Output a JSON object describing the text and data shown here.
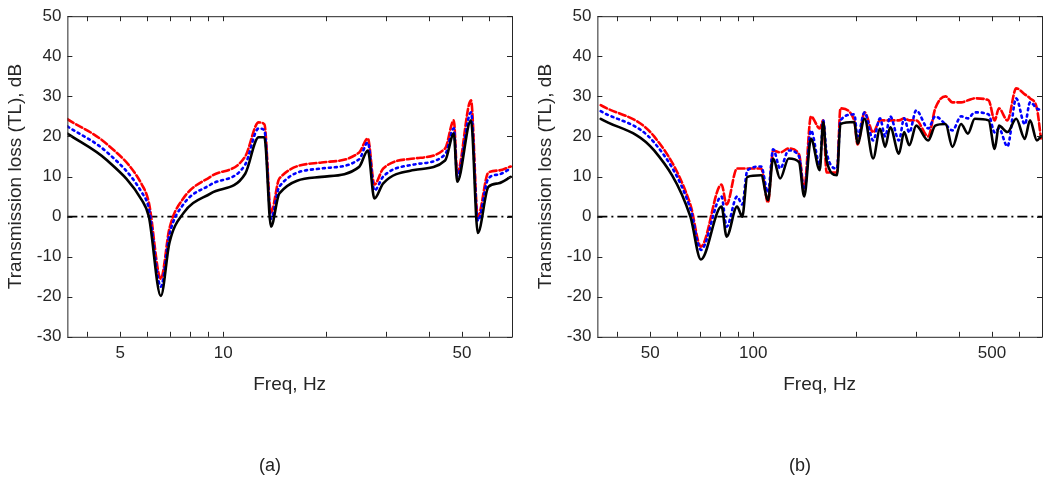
{
  "chart_data": [
    {
      "type": "line",
      "xlabel": "Freq, Hz",
      "ylabel": "Transmission loss (TL), dB",
      "log": "x",
      "grid": false,
      "legend": false,
      "marker": "none",
      "annotations": [
        "(a)"
      ],
      "xlim": [
        3.5,
        70
      ],
      "xticks": [
        {
          "value": 4,
          "label": null
        },
        5,
        {
          "value": 6,
          "label": null
        },
        {
          "value": 7,
          "label": null
        },
        {
          "value": 8,
          "label": null
        },
        {
          "value": 9,
          "label": null
        },
        10,
        {
          "value": 20,
          "label": null
        },
        {
          "value": 30,
          "label": null
        },
        {
          "value": 40,
          "label": null
        },
        50,
        {
          "value": 60,
          "label": null
        },
        {
          "value": 70,
          "label": null
        }
      ],
      "ylim": [
        -30,
        50
      ],
      "yticks": [
        -30,
        -20,
        -10,
        0,
        10,
        20,
        30,
        40,
        50
      ],
      "ref_lines": [
        {
          "axis": "y",
          "value": 0,
          "color": "#000000",
          "line_style": "dashdot"
        }
      ],
      "x": [
        3.5,
        4.58,
        5.78,
        6.06,
        6.57,
        6.96,
        7.64,
        9.2,
        11.6,
        12.7,
        13.2,
        13.8,
        14.6,
        19.4,
        25,
        26.5,
        27.7,
        29.4,
        36.2,
        44.6,
        47.3,
        48.4,
        53.1,
        55.6,
        59.7,
        64,
        69.4
      ],
      "series": [
        {
          "color": "#000000",
          "line_style": "solid",
          "values": [
            20.7,
            14,
            4.1,
            0,
            -19.8,
            -6.6,
            0.8,
            5.8,
            10.7,
            19.8,
            19.8,
            -2.5,
            5.8,
            9.9,
            12.4,
            16.5,
            4.5,
            8.3,
            11.6,
            14,
            20.7,
            8.7,
            24,
            -4.1,
            7.4,
            8.3,
            9.9
          ]
        },
        {
          "color": "#0000ff",
          "line_style": "dotted",
          "values": [
            22.5,
            16,
            6,
            2,
            -17.5,
            -4.5,
            3,
            8,
            13,
            22,
            21.5,
            -0.5,
            7.5,
            12,
            14.3,
            18.5,
            6.5,
            10,
            13,
            15.5,
            22,
            10,
            26,
            -1,
            9.5,
            10.5,
            12
          ]
        },
        {
          "color": "#ff0000",
          "line_style": "dashed",
          "values": [
            24.3,
            18,
            8,
            3.5,
            -15.5,
            -3,
            4.5,
            10,
            15,
            23.5,
            23,
            1,
            9.5,
            13.5,
            16,
            19.5,
            8,
            12,
            14.5,
            17,
            24,
            11,
            29,
            0,
            11,
            11.5,
            12.5
          ]
        }
      ]
    },
    {
      "type": "line",
      "xlabel": "Freq, Hz",
      "ylabel": "Transmission loss (TL), dB",
      "log": "x",
      "grid": false,
      "legend": false,
      "marker": "none",
      "annotations": [
        "(b)"
      ],
      "xlim": [
        35,
        700
      ],
      "xticks": [
        {
          "value": 40,
          "label": null
        },
        50,
        {
          "value": 60,
          "label": null
        },
        {
          "value": 70,
          "label": null
        },
        {
          "value": 80,
          "label": null
        },
        {
          "value": 90,
          "label": null
        },
        100,
        {
          "value": 200,
          "label": null
        },
        {
          "value": 300,
          "label": null
        },
        {
          "value": 400,
          "label": null
        },
        500,
        {
          "value": 600,
          "label": null
        },
        {
          "value": 700,
          "label": null
        }
      ],
      "ylim": [
        -30,
        50
      ],
      "yticks": [
        -30,
        -20,
        -10,
        0,
        10,
        20,
        30,
        40,
        50
      ],
      "ref_lines": [
        {
          "axis": "y",
          "value": 0,
          "color": "#000000",
          "line_style": "dashdot"
        }
      ],
      "x": [
        35.8,
        51.3,
        65.5,
        70.3,
        80.8,
        83.6,
        89.7,
        92.9,
        96.1,
        105.5,
        110.5,
        114.4,
        119.9,
        127,
        136.2,
        141,
        147.6,
        156.6,
        160.3,
        164,
        175.9,
        180,
        197.6,
        202,
        211.8,
        224.4,
        235,
        243.3,
        251.8,
        267,
        276.5,
        286.3,
        299.9,
        325.2,
        341,
        365.5,
        382.9,
        405.7,
        425,
        445,
        488.4,
        509,
        523.6,
        554.5,
        588.3,
        623.5,
        645.7,
        676.4,
        695
      ],
      "series": [
        {
          "color": "#000000",
          "line_style": "solid",
          "values": [
            24.4,
            16.5,
            0,
            -10.7,
            2.5,
            -5,
            2.5,
            0,
            9.9,
            10.3,
            4.1,
            14.5,
            9.5,
            14.5,
            13.6,
            5,
            19.4,
            11.6,
            23.6,
            14,
            10.3,
            23.1,
            23.6,
            18.2,
            24.4,
            14.5,
            21.9,
            17.4,
            22.3,
            15.7,
            21.1,
            17.8,
            22.7,
            19,
            22.7,
            23.1,
            17.4,
            23.1,
            20.7,
            24.4,
            24,
            16.9,
            22.7,
            21.1,
            24.4,
            19.4,
            24,
            19,
            20
          ]
        },
        {
          "color": "#0000ff",
          "line_style": "dotted",
          "values": [
            26.3,
            18.5,
            2,
            -8.3,
            5,
            -2.5,
            5,
            3,
            11.5,
            12.5,
            6,
            16.8,
            12,
            16.5,
            15,
            6,
            21.5,
            13,
            24,
            16,
            12,
            24,
            25.5,
            20,
            26,
            19,
            24.5,
            20,
            25,
            19,
            24.5,
            21,
            26.5,
            22,
            25,
            23,
            21.5,
            25,
            24.5,
            26,
            25.5,
            21,
            22,
            17.5,
            29.5,
            23,
            28.5,
            27,
            26.5
          ]
        },
        {
          "color": "#ff0000",
          "line_style": "dashed",
          "values": [
            27.8,
            20,
            3,
            -7.5,
            8,
            3,
            12,
            12,
            12,
            12,
            3.5,
            16.5,
            16,
            17,
            15.5,
            7,
            25,
            22,
            24,
            11,
            11,
            27,
            24,
            18,
            26,
            21,
            24,
            24,
            24,
            24,
            24.5,
            24,
            24,
            20,
            27,
            30,
            28.5,
            28.5,
            29,
            29.5,
            29,
            24,
            27,
            24,
            32,
            30.5,
            29.5,
            27,
            19.5
          ]
        }
      ]
    }
  ]
}
